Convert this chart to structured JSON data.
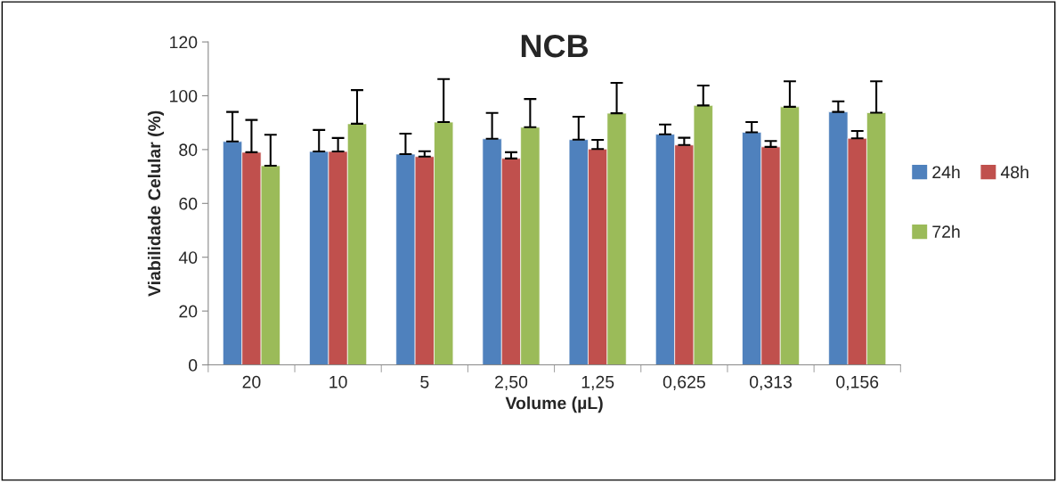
{
  "chart_data": {
    "type": "bar",
    "title": "NCB",
    "xlabel": "Volume (µL)",
    "ylabel": "Viabilidade Celular (%)",
    "categories": [
      "20",
      "10",
      "5",
      "2,50",
      "1,25",
      "0,625",
      "0,313",
      "0,156"
    ],
    "series": [
      {
        "name": "24h",
        "color": "#4f81bd",
        "values": [
          83,
          79.3,
          78.3,
          84,
          83.7,
          85.7,
          86.4,
          94
        ],
        "errors": [
          11,
          8,
          7.6,
          9.6,
          8.5,
          3.6,
          3.8,
          3.9
        ]
      },
      {
        "name": "48h",
        "color": "#c0504d",
        "values": [
          79,
          79.3,
          77.4,
          76.7,
          80.2,
          81.7,
          81,
          84.2
        ],
        "errors": [
          12,
          5,
          2,
          2.3,
          3.4,
          2.7,
          2.2,
          2.7
        ]
      },
      {
        "name": "72h",
        "color": "#9bbb59",
        "values": [
          74,
          89.6,
          90.2,
          88.3,
          93.5,
          96.4,
          95.9,
          93.7
        ],
        "errors": [
          11.5,
          12.5,
          16,
          10.5,
          11.3,
          7.4,
          9.5,
          11.7
        ]
      }
    ],
    "ylim": [
      0,
      120
    ],
    "yticks": [
      0,
      20,
      40,
      60,
      80,
      100,
      120
    ],
    "grid": false,
    "legend": "right"
  }
}
